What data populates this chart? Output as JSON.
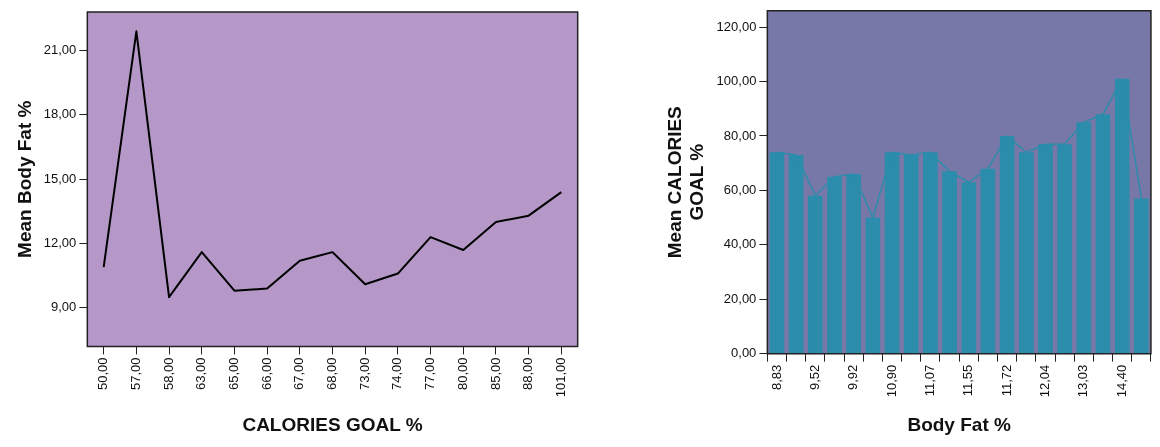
{
  "chart_data": [
    {
      "type": "line",
      "xlabel": "CALORIES GOAL %",
      "ylabel": "Mean Body Fat %",
      "categories": [
        "50,00",
        "57,00",
        "58,00",
        "63,00",
        "65,00",
        "66,00",
        "67,00",
        "68,00",
        "73,00",
        "74,00",
        "77,00",
        "80,00",
        "85,00",
        "88,00",
        "101,00"
      ],
      "series": [
        {
          "color": "#000000",
          "values": [
            10.9,
            21.9,
            9.5,
            11.6,
            9.8,
            9.9,
            11.2,
            11.6,
            10.1,
            10.6,
            12.3,
            11.7,
            13.0,
            13.3,
            14.4
          ]
        }
      ],
      "ylim": [
        7.2,
        22.8
      ],
      "yticks": [
        {
          "value": 9,
          "label": "9,00"
        },
        {
          "value": 12,
          "label": "12,00"
        },
        {
          "value": 15,
          "label": "15,00"
        },
        {
          "value": 18,
          "label": "18,00"
        },
        {
          "value": 21,
          "label": "21,00"
        }
      ],
      "grid": false,
      "legend": false,
      "marker": "none",
      "line_style": "solid"
    },
    {
      "type": "bar",
      "xlabel": "Body Fat %",
      "ylabel": "Mean CALORIES GOAL %",
      "categories": [
        "8,83",
        null,
        "9,52",
        null,
        "9,92",
        null,
        "10,90",
        null,
        "11,07",
        null,
        "11,55",
        null,
        "11,72",
        null,
        "12,04",
        null,
        "13,03",
        null,
        "14,40",
        null
      ],
      "series": [
        {
          "color": "#2b8cab",
          "values": [
            74,
            73,
            58,
            65,
            66,
            50,
            74,
            73,
            74,
            67,
            63,
            68,
            80,
            74,
            77,
            77,
            85,
            88,
            101,
            57
          ]
        },
        {
          "type": "line",
          "color": "#2b8cab",
          "values": [
            74,
            73,
            58,
            65,
            66,
            50,
            74,
            73,
            74,
            67,
            63,
            68,
            80,
            74,
            77,
            77,
            85,
            88,
            101,
            57
          ]
        }
      ],
      "ylim": [
        0,
        126
      ],
      "yticks": [
        {
          "value": 0,
          "label": "0,00"
        },
        {
          "value": 20,
          "label": "20,00"
        },
        {
          "value": 40,
          "label": "40,00"
        },
        {
          "value": 60,
          "label": "60,00"
        },
        {
          "value": 80,
          "label": "80,00"
        },
        {
          "value": 100,
          "label": "100,00"
        },
        {
          "value": 120,
          "label": "120,00"
        }
      ],
      "grid": false,
      "legend": false,
      "marker": "none"
    }
  ]
}
